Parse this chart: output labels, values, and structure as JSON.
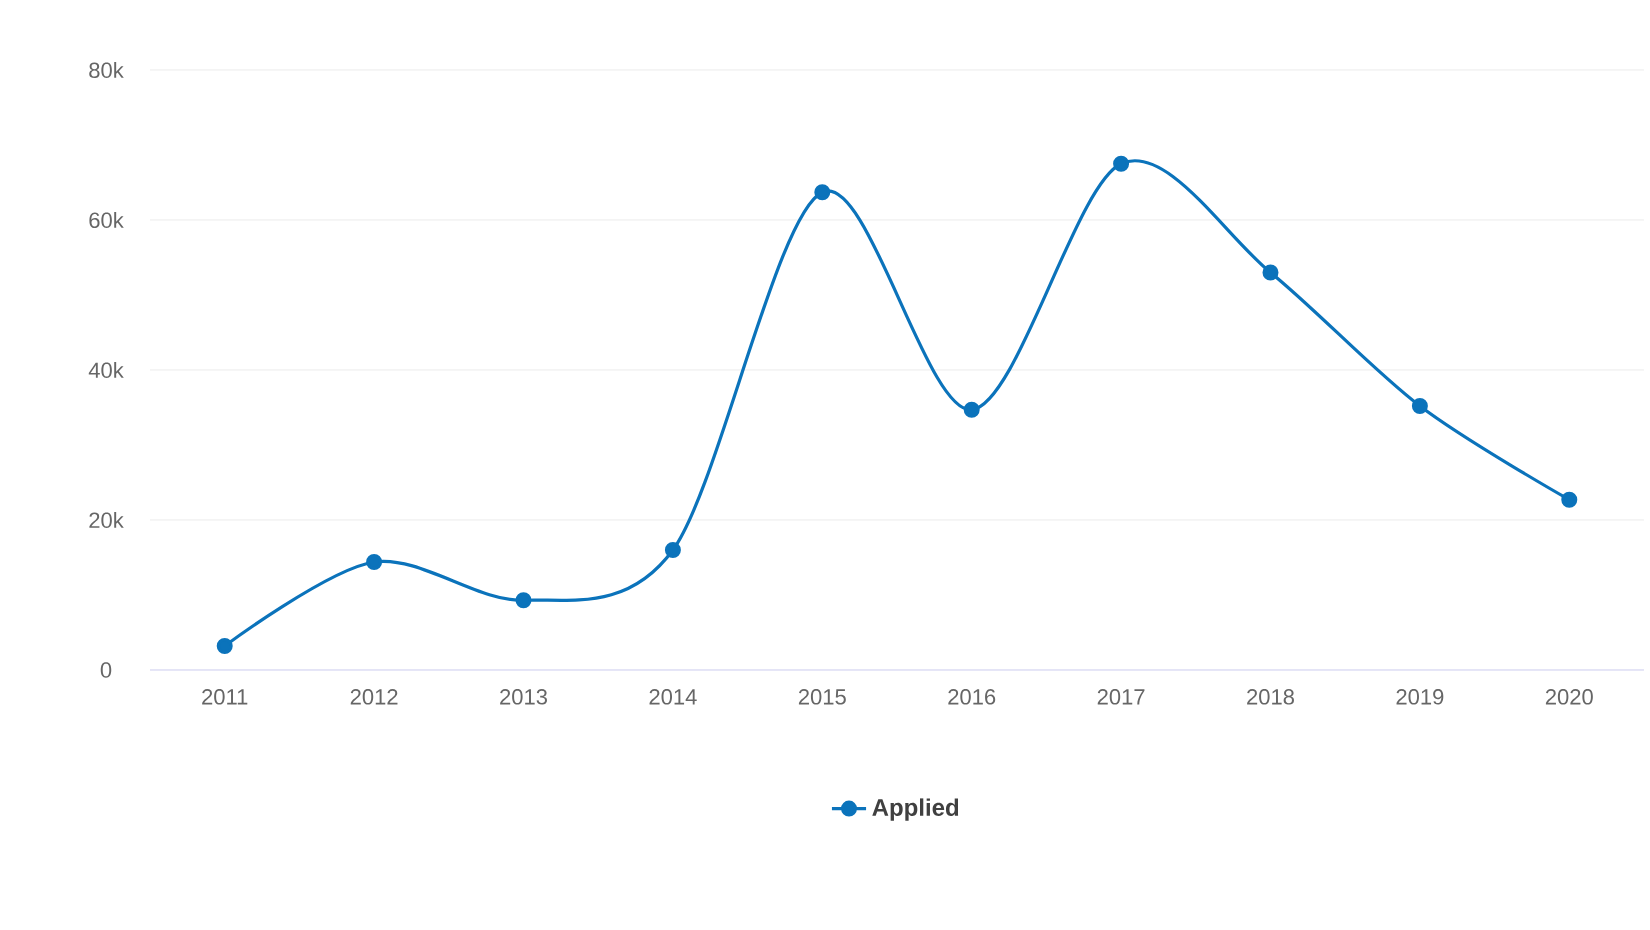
{
  "chart_data": {
    "type": "line",
    "categories": [
      "2011",
      "2012",
      "2013",
      "2014",
      "2015",
      "2016",
      "2017",
      "2018",
      "2019",
      "2020"
    ],
    "series": [
      {
        "name": "Applied",
        "color": "#0b73bb",
        "values": [
          3200,
          14400,
          9300,
          16000,
          63700,
          34700,
          67500,
          53000,
          35200,
          22700
        ]
      }
    ],
    "ylim": [
      0,
      80000
    ],
    "yticks": [
      0,
      {
        "value": 20000,
        "label": "20k"
      },
      {
        "value": 40000,
        "label": "40k"
      },
      {
        "value": 60000,
        "label": "60k"
      },
      {
        "value": 80000,
        "label": "80k"
      }
    ],
    "grid": "y",
    "legend": "bottom",
    "marker": "circle",
    "line_style": "solid"
  }
}
